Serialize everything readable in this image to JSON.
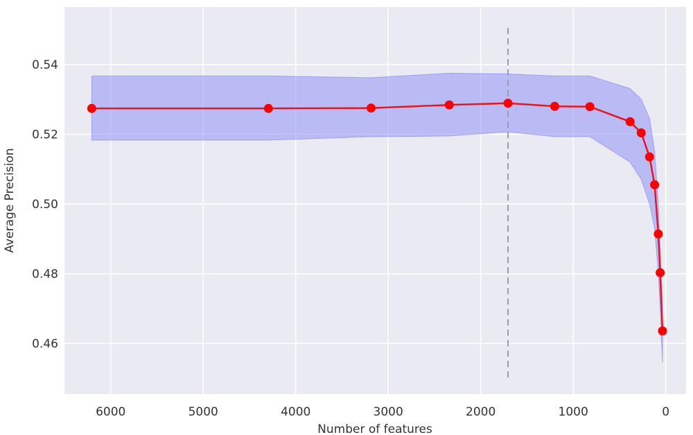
{
  "chart_data": {
    "type": "line",
    "title": "",
    "xlabel": "Number of features",
    "ylabel": "Average Precision",
    "xlim": [
      6500,
      -220
    ],
    "ylim": [
      0.4455,
      0.5565
    ],
    "x_inverted": true,
    "grid": true,
    "x_ticks": [
      6000,
      5000,
      4000,
      3000,
      2000,
      1000,
      0
    ],
    "x_tick_labels": [
      "6000",
      "5000",
      "4000",
      "3000",
      "2000",
      "1000",
      "0"
    ],
    "y_ticks": [
      0.46,
      0.48,
      0.5,
      0.52,
      0.54
    ],
    "y_tick_labels": [
      "0.46",
      "0.48",
      "0.50",
      "0.52",
      "0.54"
    ],
    "series": [
      {
        "x": [
          6205,
          4295,
          3185,
          2340,
          1705,
          1200,
          820,
          385,
          265,
          175,
          120,
          80,
          60,
          35
        ],
        "y": [
          0.5274,
          0.5274,
          0.5275,
          0.5284,
          0.5289,
          0.528,
          0.5279,
          0.5236,
          0.5204,
          0.5135,
          0.5055,
          0.4914,
          0.4803,
          0.4636
        ]
      }
    ],
    "band": {
      "x": [
        6205,
        4295,
        3185,
        2340,
        1705,
        1200,
        820,
        385,
        265,
        175,
        120,
        80,
        60,
        35
      ],
      "upper": [
        0.5367,
        0.5367,
        0.5362,
        0.5375,
        0.5373,
        0.5367,
        0.5367,
        0.5331,
        0.53,
        0.5245,
        0.515,
        0.5,
        0.487,
        0.47
      ],
      "lower": [
        0.5183,
        0.5183,
        0.5193,
        0.5195,
        0.5207,
        0.5193,
        0.5193,
        0.512,
        0.507,
        0.5,
        0.493,
        0.48,
        0.47,
        0.4545
      ]
    },
    "vline": {
      "x": 1705,
      "y_range": [
        0.4495,
        0.5505
      ]
    },
    "colors": {
      "plot_background": "#eaeaf2",
      "grid": "#ffffff",
      "line": "#e8161b",
      "marker": "#ff0000",
      "band_fill": "#8a8af5",
      "band_edge": "#7a7af0",
      "vline": "#9a9aa6"
    }
  }
}
